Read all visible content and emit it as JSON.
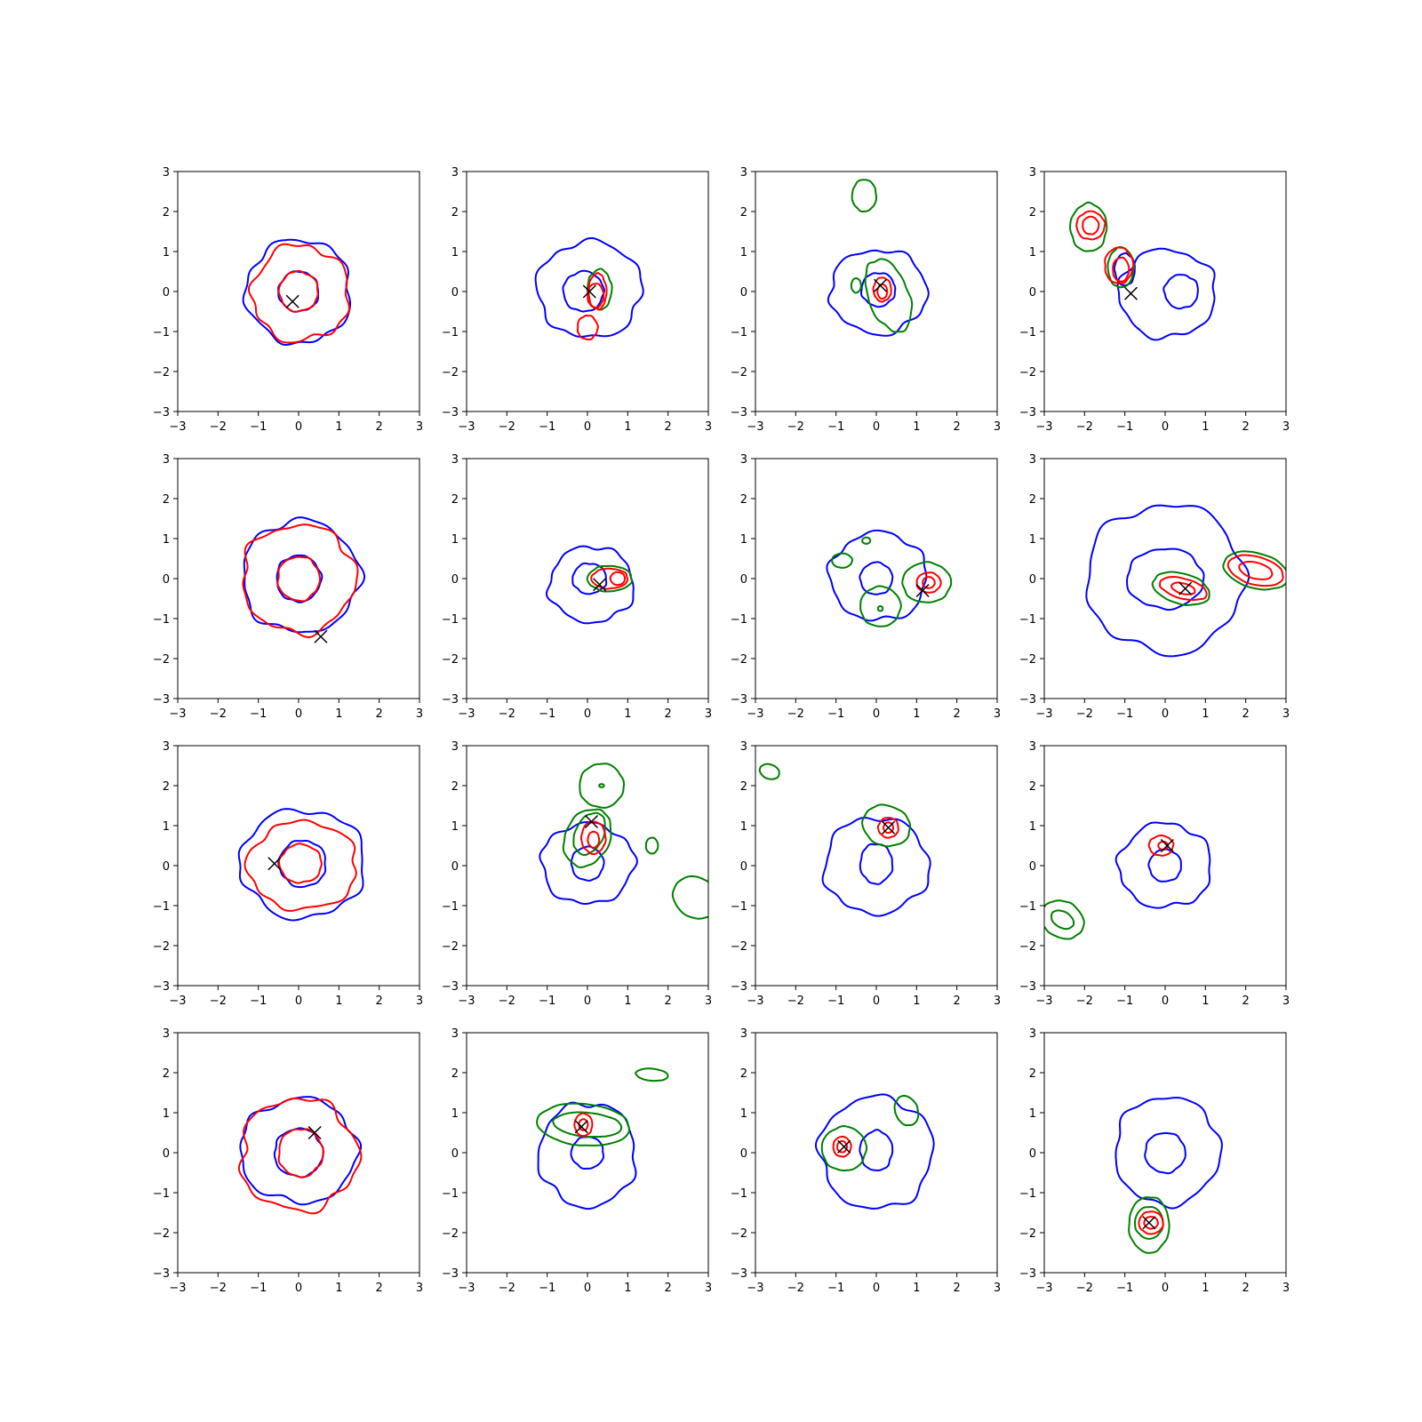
{
  "colors": {
    "blue": "#0000ff",
    "red": "#ff0000",
    "green": "#008000",
    "marker": "#000000"
  },
  "chart_data": {
    "type": "contour-grid",
    "rows": 4,
    "cols": 4,
    "xlim": [
      -3,
      3
    ],
    "ylim": [
      -3,
      3
    ],
    "xticks": [
      -3,
      -2,
      -1,
      0,
      1,
      2,
      3
    ],
    "yticks": [
      -3,
      -2,
      -1,
      0,
      1,
      2,
      3
    ],
    "xtick_labels": [
      "−3",
      "−2",
      "−1",
      "0",
      "1",
      "2",
      "3"
    ],
    "ytick_labels": [
      "−3",
      "−2",
      "−1",
      "0",
      "1",
      "2",
      "3"
    ],
    "panels": [
      {
        "marker": [
          -0.15,
          -0.25
        ],
        "blue": [
          {
            "cx": 0,
            "cy": 0,
            "rx": 1.3,
            "ry": 1.3,
            "w": 0.08
          },
          {
            "cx": 0,
            "cy": 0,
            "rx": 0.5,
            "ry": 0.5,
            "w": 0.05
          }
        ],
        "red": [
          {
            "cx": 0.05,
            "cy": -0.05,
            "rx": 1.2,
            "ry": 1.2,
            "w": 0.1
          },
          {
            "cx": 0,
            "cy": 0,
            "rx": 0.48,
            "ry": 0.5,
            "w": 0.05
          }
        ],
        "green": []
      },
      {
        "marker": [
          0.05,
          0.0
        ],
        "blue": [
          {
            "cx": 0.05,
            "cy": 0.05,
            "rx": 1.3,
            "ry": 1.2,
            "w": 0.08
          },
          {
            "cx": -0.1,
            "cy": 0,
            "rx": 0.5,
            "ry": 0.5,
            "w": 0.05
          }
        ],
        "red": [
          {
            "cx": 0.25,
            "cy": 0,
            "rx": 0.22,
            "ry": 0.45,
            "w": 0.05
          },
          {
            "cx": 0.0,
            "cy": -0.9,
            "rx": 0.25,
            "ry": 0.3,
            "w": 0.05
          },
          {
            "cx": 0.2,
            "cy": -0.1,
            "rx": 0.2,
            "ry": 0.3,
            "w": 0.04
          }
        ],
        "green": [
          {
            "cx": 0.3,
            "cy": 0.05,
            "rx": 0.3,
            "ry": 0.5,
            "w": 0.05
          }
        ]
      },
      {
        "marker": [
          0.1,
          0.15
        ],
        "blue": [
          {
            "cx": 0.05,
            "cy": 0.0,
            "rx": 1.2,
            "ry": 1.05,
            "w": 0.08
          },
          {
            "cx": 0.05,
            "cy": 0.05,
            "rx": 0.42,
            "ry": 0.42,
            "w": 0.05
          }
        ],
        "red": [
          {
            "cx": 0.15,
            "cy": 0.05,
            "rx": 0.22,
            "ry": 0.3,
            "w": 0.04
          },
          {
            "cx": 0.15,
            "cy": 0.0,
            "rx": 0.12,
            "ry": 0.18,
            "w": 0.03
          }
        ],
        "green": [
          {
            "cx": 0.3,
            "cy": -0.1,
            "rx": 0.5,
            "ry": 0.95,
            "rot": 20,
            "w": 0.05
          },
          {
            "cx": -0.3,
            "cy": 2.4,
            "rx": 0.3,
            "ry": 0.4,
            "w": 0.03
          },
          {
            "cx": -0.5,
            "cy": 0.15,
            "rx": 0.12,
            "ry": 0.18,
            "w": 0.02
          }
        ]
      },
      {
        "marker": [
          -0.85,
          -0.05
        ],
        "blue": [
          {
            "cx": 0.05,
            "cy": -0.05,
            "rx": 1.2,
            "ry": 1.1,
            "w": 0.08
          },
          {
            "cx": 0.4,
            "cy": 0,
            "rx": 0.42,
            "ry": 0.42,
            "w": 0.05
          },
          {
            "cx": -1.0,
            "cy": 0.55,
            "rx": 0.25,
            "ry": 0.4,
            "w": 0.04
          }
        ],
        "red": [
          {
            "cx": -1.85,
            "cy": 1.65,
            "rx": 0.35,
            "ry": 0.35,
            "w": 0.04
          },
          {
            "cx": -1.85,
            "cy": 1.65,
            "rx": 0.2,
            "ry": 0.22,
            "w": 0.03
          },
          {
            "cx": -1.15,
            "cy": 0.65,
            "rx": 0.35,
            "ry": 0.45,
            "w": 0.04
          },
          {
            "cx": -1.1,
            "cy": 0.55,
            "rx": 0.2,
            "ry": 0.3,
            "w": 0.03
          }
        ],
        "green": [
          {
            "cx": -1.9,
            "cy": 1.6,
            "rx": 0.45,
            "ry": 0.6,
            "w": 0.04
          },
          {
            "cx": -1.1,
            "cy": 0.6,
            "rx": 0.32,
            "ry": 0.5,
            "w": 0.03
          }
        ]
      },
      {
        "marker": [
          0.55,
          -1.45
        ],
        "blue": [
          {
            "cx": 0.05,
            "cy": 0.05,
            "rx": 1.45,
            "ry": 1.4,
            "w": 0.08
          },
          {
            "cx": 0,
            "cy": 0,
            "rx": 0.55,
            "ry": 0.58,
            "w": 0.05
          }
        ],
        "red": [
          {
            "cx": 0,
            "cy": 0,
            "rx": 1.4,
            "ry": 1.35,
            "w": 0.09
          },
          {
            "cx": 0,
            "cy": 0,
            "rx": 0.52,
            "ry": 0.55,
            "w": 0.05
          }
        ],
        "green": []
      },
      {
        "marker": [
          0.3,
          -0.15
        ],
        "blue": [
          {
            "cx": 0.1,
            "cy": -0.15,
            "rx": 1.05,
            "ry": 0.95,
            "w": 0.08
          },
          {
            "cx": 0.05,
            "cy": 0.0,
            "rx": 0.42,
            "ry": 0.38,
            "w": 0.05
          }
        ],
        "red": [
          {
            "cx": 0.55,
            "cy": 0.0,
            "rx": 0.45,
            "ry": 0.25,
            "w": 0.04
          },
          {
            "cx": 0.75,
            "cy": 0.0,
            "rx": 0.18,
            "ry": 0.16,
            "w": 0.03
          }
        ],
        "green": [
          {
            "cx": 0.55,
            "cy": 0.0,
            "rx": 0.55,
            "ry": 0.32,
            "w": 0.04
          }
        ]
      },
      {
        "marker": [
          1.15,
          -0.3
        ],
        "blue": [
          {
            "cx": 0.05,
            "cy": 0.05,
            "rx": 1.2,
            "ry": 1.1,
            "w": 0.08
          },
          {
            "cx": 0.0,
            "cy": 0.0,
            "rx": 0.4,
            "ry": 0.4,
            "w": 0.04
          }
        ],
        "red": [
          {
            "cx": 1.3,
            "cy": -0.1,
            "rx": 0.3,
            "ry": 0.25,
            "w": 0.03
          },
          {
            "cx": 1.3,
            "cy": -0.1,
            "rx": 0.15,
            "ry": 0.14,
            "w": 0.02
          }
        ],
        "green": [
          {
            "cx": 1.25,
            "cy": -0.1,
            "rx": 0.6,
            "ry": 0.5,
            "w": 0.03
          },
          {
            "cx": 0.1,
            "cy": -0.7,
            "rx": 0.5,
            "ry": 0.5,
            "w": 0.03
          },
          {
            "cx": -0.85,
            "cy": 0.45,
            "rx": 0.25,
            "ry": 0.18,
            "w": 0.02
          },
          {
            "cx": -0.25,
            "cy": 0.95,
            "rx": 0.1,
            "ry": 0.08,
            "w": 0.0
          },
          {
            "cx": 0.1,
            "cy": -0.75,
            "rx": 0.06,
            "ry": 0.06,
            "w": 0.0
          }
        ]
      },
      {
        "marker": [
          0.5,
          -0.25
        ],
        "blue": [
          {
            "cx": 0.0,
            "cy": 0.0,
            "rx": 1.95,
            "ry": 1.85,
            "w": 0.08
          },
          {
            "cx": 0.0,
            "cy": 0.0,
            "rx": 0.95,
            "ry": 0.75,
            "w": 0.05
          }
        ],
        "red": [
          {
            "cx": 0.45,
            "cy": -0.25,
            "rx": 0.6,
            "ry": 0.25,
            "rot": -15,
            "w": 0.03
          },
          {
            "cx": 0.45,
            "cy": -0.25,
            "rx": 0.3,
            "ry": 0.13,
            "rot": -15,
            "w": 0.02
          },
          {
            "cx": 2.25,
            "cy": 0.2,
            "rx": 0.7,
            "ry": 0.35,
            "rot": -15,
            "w": 0.02
          },
          {
            "cx": 2.25,
            "cy": 0.2,
            "rx": 0.42,
            "ry": 0.2,
            "rot": -15,
            "w": 0.02
          }
        ],
        "green": [
          {
            "cx": 0.4,
            "cy": -0.25,
            "rx": 0.72,
            "ry": 0.38,
            "rot": -15,
            "w": 0.03
          },
          {
            "cx": 2.25,
            "cy": 0.2,
            "rx": 0.82,
            "ry": 0.44,
            "rot": -15,
            "w": 0.02
          }
        ]
      },
      {
        "marker": [
          -0.6,
          0.05
        ],
        "blue": [
          {
            "cx": 0.1,
            "cy": 0.05,
            "rx": 1.55,
            "ry": 1.35,
            "w": 0.08
          },
          {
            "cx": 0.1,
            "cy": 0.05,
            "rx": 0.58,
            "ry": 0.58,
            "w": 0.05
          }
        ],
        "red": [
          {
            "cx": 0.1,
            "cy": 0.0,
            "rx": 1.35,
            "ry": 1.1,
            "w": 0.08
          },
          {
            "cx": 0.05,
            "cy": 0.05,
            "rx": 0.52,
            "ry": 0.48,
            "w": 0.05
          }
        ],
        "green": []
      },
      {
        "marker": [
          0.1,
          1.1
        ],
        "blue": [
          {
            "cx": 0.0,
            "cy": 0.05,
            "rx": 1.15,
            "ry": 1.0,
            "w": 0.08
          },
          {
            "cx": 0.0,
            "cy": 0.05,
            "rx": 0.4,
            "ry": 0.42,
            "w": 0.04
          }
        ],
        "red": [
          {
            "cx": 0.15,
            "cy": 0.7,
            "rx": 0.3,
            "ry": 0.4,
            "w": 0.04
          },
          {
            "cx": 0.15,
            "cy": 0.65,
            "rx": 0.14,
            "ry": 0.2,
            "w": 0.03
          }
        ],
        "green": [
          {
            "cx": 0.0,
            "cy": 0.7,
            "rx": 0.55,
            "ry": 0.75,
            "rot": -25,
            "w": 0.04
          },
          {
            "cx": 0.05,
            "cy": 0.8,
            "rx": 0.35,
            "ry": 0.55,
            "rot": -25,
            "w": 0.03
          },
          {
            "cx": 0.35,
            "cy": 2.0,
            "rx": 0.55,
            "ry": 0.55,
            "w": 0.03
          },
          {
            "cx": 0.35,
            "cy": 2.0,
            "rx": 0.06,
            "ry": 0.04,
            "w": 0.0
          },
          {
            "cx": 1.6,
            "cy": 0.5,
            "rx": 0.15,
            "ry": 0.2,
            "w": 0.02
          },
          {
            "cx": 2.7,
            "cy": -0.8,
            "rx": 0.6,
            "ry": 0.5,
            "rot": -30,
            "w": 0.02
          }
        ]
      },
      {
        "marker": [
          0.3,
          0.95
        ],
        "blue": [
          {
            "cx": 0.0,
            "cy": 0.0,
            "rx": 1.3,
            "ry": 1.2,
            "w": 0.08
          },
          {
            "cx": 0.0,
            "cy": 0.05,
            "rx": 0.4,
            "ry": 0.5,
            "w": 0.05
          }
        ],
        "red": [
          {
            "cx": 0.3,
            "cy": 0.95,
            "rx": 0.25,
            "ry": 0.25,
            "w": 0.04
          },
          {
            "cx": 0.3,
            "cy": 0.95,
            "rx": 0.12,
            "ry": 0.13,
            "w": 0.03
          }
        ],
        "green": [
          {
            "cx": 0.25,
            "cy": 1.0,
            "rx": 0.6,
            "ry": 0.5,
            "rot": -20,
            "w": 0.03
          },
          {
            "cx": -2.65,
            "cy": 2.35,
            "rx": 0.25,
            "ry": 0.18,
            "rot": -20,
            "w": 0.02
          }
        ]
      },
      {
        "marker": [
          0.05,
          0.5
        ],
        "blue": [
          {
            "cx": 0.0,
            "cy": 0.0,
            "rx": 1.15,
            "ry": 1.05,
            "w": 0.08
          },
          {
            "cx": 0.0,
            "cy": 0.0,
            "rx": 0.4,
            "ry": 0.4,
            "w": 0.04
          }
        ],
        "red": [
          {
            "cx": -0.1,
            "cy": 0.5,
            "rx": 0.3,
            "ry": 0.25,
            "w": 0.04
          },
          {
            "cx": -0.05,
            "cy": 0.5,
            "rx": 0.12,
            "ry": 0.1,
            "w": 0.02
          }
        ],
        "green": [
          {
            "cx": -2.55,
            "cy": -1.35,
            "rx": 0.55,
            "ry": 0.45,
            "rot": -30,
            "w": 0.03
          },
          {
            "cx": -2.55,
            "cy": -1.35,
            "rx": 0.3,
            "ry": 0.2,
            "rot": -30,
            "w": 0.02
          }
        ]
      },
      {
        "marker": [
          0.4,
          0.5
        ],
        "blue": [
          {
            "cx": 0.0,
            "cy": 0.05,
            "rx": 1.45,
            "ry": 1.3,
            "w": 0.08
          },
          {
            "cx": 0.0,
            "cy": 0.0,
            "rx": 0.6,
            "ry": 0.6,
            "w": 0.05
          }
        ],
        "red": [
          {
            "cx": 0.0,
            "cy": -0.05,
            "rx": 1.45,
            "ry": 1.4,
            "w": 0.1
          },
          {
            "cx": 0.05,
            "cy": 0.0,
            "rx": 0.55,
            "ry": 0.6,
            "w": 0.05
          }
        ],
        "green": []
      },
      {
        "marker": [
          -0.15,
          0.65
        ],
        "blue": [
          {
            "cx": 0.0,
            "cy": -0.05,
            "rx": 1.2,
            "ry": 1.3,
            "w": 0.08
          },
          {
            "cx": 0.0,
            "cy": 0.0,
            "rx": 0.4,
            "ry": 0.4,
            "w": 0.04
          }
        ],
        "red": [
          {
            "cx": -0.1,
            "cy": 0.7,
            "rx": 0.22,
            "ry": 0.28,
            "w": 0.03
          },
          {
            "cx": -0.1,
            "cy": 0.7,
            "rx": 0.11,
            "ry": 0.14,
            "w": 0.02
          }
        ],
        "green": [
          {
            "cx": -0.1,
            "cy": 0.7,
            "rx": 1.15,
            "ry": 0.52,
            "rot": -5,
            "w": 0.02
          },
          {
            "cx": 0.0,
            "cy": 0.7,
            "rx": 0.85,
            "ry": 0.3,
            "rot": -5,
            "w": 0.02
          },
          {
            "cx": 1.6,
            "cy": 1.95,
            "rx": 0.4,
            "ry": 0.15,
            "rot": -5,
            "w": 0.02
          }
        ]
      },
      {
        "marker": [
          -0.8,
          0.15
        ],
        "blue": [
          {
            "cx": 0.0,
            "cy": 0.0,
            "rx": 1.4,
            "ry": 1.4,
            "w": 0.08
          },
          {
            "cx": 0.0,
            "cy": 0.05,
            "rx": 0.4,
            "ry": 0.5,
            "w": 0.05
          }
        ],
        "red": [
          {
            "cx": -0.85,
            "cy": 0.15,
            "rx": 0.22,
            "ry": 0.25,
            "w": 0.03
          },
          {
            "cx": -0.85,
            "cy": 0.15,
            "rx": 0.12,
            "ry": 0.14,
            "w": 0.02
          }
        ],
        "green": [
          {
            "cx": -0.8,
            "cy": 0.1,
            "rx": 0.55,
            "ry": 0.55,
            "w": 0.03
          },
          {
            "cx": 0.75,
            "cy": 1.05,
            "rx": 0.28,
            "ry": 0.38,
            "rot": 20,
            "w": 0.02
          }
        ]
      },
      {
        "marker": [
          -0.4,
          -1.75
        ],
        "blue": [
          {
            "cx": 0.05,
            "cy": 0.05,
            "rx": 1.3,
            "ry": 1.35,
            "w": 0.07
          },
          {
            "cx": 0.0,
            "cy": 0.0,
            "rx": 0.5,
            "ry": 0.5,
            "w": 0.04
          }
        ],
        "red": [
          {
            "cx": -0.35,
            "cy": -1.75,
            "rx": 0.3,
            "ry": 0.28,
            "w": 0.03
          },
          {
            "cx": -0.35,
            "cy": -1.75,
            "rx": 0.17,
            "ry": 0.15,
            "w": 0.02
          }
        ],
        "green": [
          {
            "cx": -0.4,
            "cy": -1.8,
            "rx": 0.5,
            "ry": 0.7,
            "w": 0.03
          },
          {
            "cx": -0.4,
            "cy": -1.75,
            "rx": 0.35,
            "ry": 0.4,
            "w": 0.02
          }
        ]
      }
    ]
  }
}
